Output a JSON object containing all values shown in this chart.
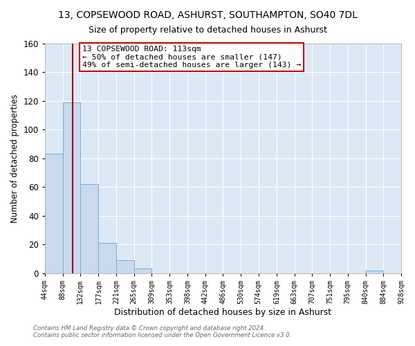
{
  "title": "13, COPSEWOOD ROAD, ASHURST, SOUTHAMPTON, SO40 7DL",
  "subtitle": "Size of property relative to detached houses in Ashurst",
  "xlabel": "Distribution of detached houses by size in Ashurst",
  "ylabel": "Number of detached properties",
  "bin_edges": [
    44,
    88,
    132,
    177,
    221,
    265,
    309,
    353,
    398,
    442,
    486,
    530,
    574,
    619,
    663,
    707,
    751,
    795,
    840,
    884,
    928
  ],
  "bin_counts": [
    83,
    119,
    62,
    21,
    9,
    3,
    0,
    0,
    0,
    0,
    0,
    0,
    0,
    0,
    0,
    0,
    0,
    0,
    2,
    0
  ],
  "bar_color": "#c9d9ee",
  "bar_edge_color": "#7aaed4",
  "plot_bg_color": "#dde8f5",
  "fig_bg_color": "#ffffff",
  "grid_color": "#ffffff",
  "vline_x": 113,
  "vline_color": "#990000",
  "annotation_box_text": "13 COPSEWOOD ROAD: 113sqm\n← 50% of detached houses are smaller (147)\n49% of semi-detached houses are larger (143) →",
  "annotation_box_color": "#cc0000",
  "ylim": [
    0,
    160
  ],
  "yticks": [
    0,
    20,
    40,
    60,
    80,
    100,
    120,
    140,
    160
  ],
  "tick_labels": [
    "44sqm",
    "88sqm",
    "132sqm",
    "177sqm",
    "221sqm",
    "265sqm",
    "309sqm",
    "353sqm",
    "398sqm",
    "442sqm",
    "486sqm",
    "530sqm",
    "574sqm",
    "619sqm",
    "663sqm",
    "707sqm",
    "751sqm",
    "795sqm",
    "840sqm",
    "884sqm",
    "928sqm"
  ],
  "footer_line1": "Contains HM Land Registry data © Crown copyright and database right 2024.",
  "footer_line2": "Contains public sector information licensed under the Open Government Licence v3.0."
}
